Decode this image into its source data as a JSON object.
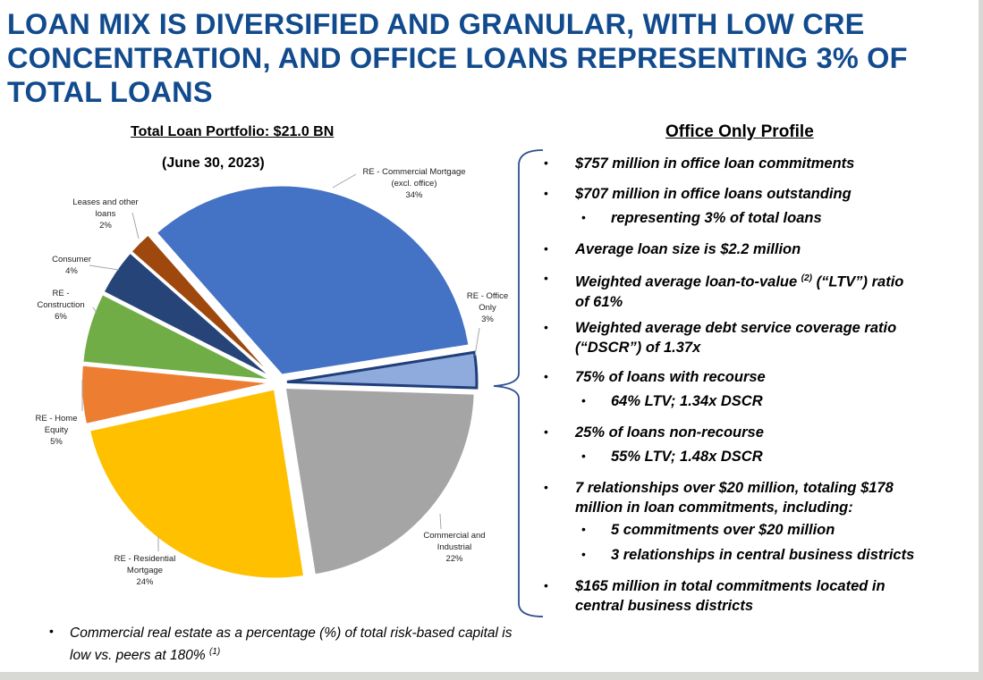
{
  "title": "LOAN MIX IS DIVERSIFIED AND GRANULAR, WITH LOW CRE CONCENTRATION, AND OFFICE LOANS REPRESENTING 3% OF TOTAL LOANS",
  "chart_data": {
    "type": "pie",
    "title": "Total Loan Portfolio: $21.0 BN",
    "subtitle": "(June 30, 2023)",
    "slices": [
      {
        "label": "RE - Office Only",
        "value": 3,
        "display": "3%",
        "color": "#8faadc",
        "highlight_outline": "#1f3f7a"
      },
      {
        "label": "Commercial and Industrial",
        "value": 22,
        "display": "22%",
        "color": "#a5a5a5"
      },
      {
        "label": "RE - Residential Mortgage",
        "value": 24,
        "display": "24%",
        "color": "#ffc000"
      },
      {
        "label": "RE - Home Equity",
        "value": 5,
        "display": "5%",
        "color": "#ed7d31"
      },
      {
        "label": "RE - Construction",
        "value": 6,
        "display": "6%",
        "color": "#70ad47"
      },
      {
        "label": "Consumer",
        "value": 4,
        "display": "4%",
        "color": "#264478"
      },
      {
        "label": "Leases and other loans",
        "value": 2,
        "display": "2%",
        "color": "#9e480e"
      },
      {
        "label": "RE - Commercial Mortgage (excl. office)",
        "value": 34,
        "display": "34%",
        "color": "#4472c4"
      }
    ],
    "exploded": true,
    "legend": "none (data labels)"
  },
  "office_profile": {
    "title": "Office Only Profile",
    "bullets": [
      "$757 million in office loan commitments",
      "$707 million in office loans outstanding",
      "representing 3% of total loans",
      "Average loan size is $2.2 million",
      "Weighted average loan-to-value",
      "(2)",
      "(“LTV”) ratio",
      "of 61%",
      "Weighted average debt service coverage ratio",
      "(“DSCR”) of 1.37x",
      "75% of loans with recourse",
      "64% LTV; 1.34x DSCR",
      "25% of loans non-recourse",
      "55% LTV; 1.48x DSCR",
      "7 relationships over $20 million, totaling $178",
      "million in loan commitments, including:",
      "5 commitments over $20 million",
      "3 relationships in central business districts",
      "$165 million in total commitments located in",
      "central business districts"
    ]
  },
  "note": {
    "text": "Commercial real estate as a percentage (%) of total risk-based capital is low vs. peers at 180%",
    "footnote": "(1)"
  },
  "bullet_char": "•",
  "accent_color": "#124b8d"
}
